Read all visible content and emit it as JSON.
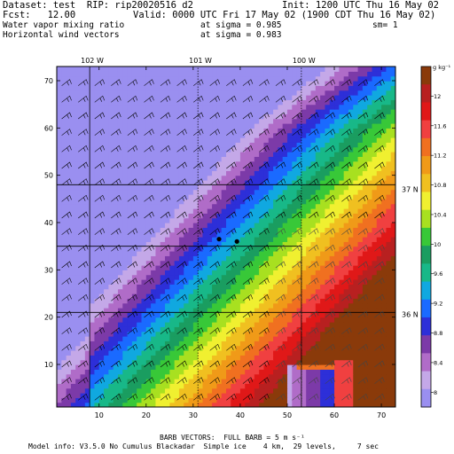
{
  "header": {
    "dataset": "Dataset: test  RIP: rip20020516 d2",
    "init": "Init: 1200 UTC Thu 16 May 02",
    "fcst": "Fcst:   12.00",
    "valid": "Valid: 0000 UTC Fri 17 May 02 (1900 CDT Thu 16 May 02)",
    "field1": "Water vapor mixing ratio",
    "sigma1": "at sigma = 0.985",
    "sm": "sm= 1",
    "field2": "Horizontal wind vectors",
    "sigma2": "at sigma = 0.983"
  },
  "footer": {
    "barbs": "BARB VECTORS:  FULL BARB = 5 m s⁻¹",
    "model": "Model info: V3.5.0 No Cumulus Blackadar  Simple ice    4 km,  29 levels,     7 sec"
  },
  "colors": {
    "scale": [
      "#9a8ff0",
      "#c4a8e8",
      "#b06cc8",
      "#7c3aa8",
      "#2d2fd8",
      "#1a6aff",
      "#10a8e0",
      "#18b888",
      "#1a9d60",
      "#38c838",
      "#a8e020",
      "#f0f030",
      "#f0c020",
      "#f09a18",
      "#f07020",
      "#f04040",
      "#e01818",
      "#b82020",
      "#8a3a0a"
    ]
  },
  "chart_data": {
    "type": "heatmap",
    "title": "Water vapor mixing ratio at sigma = 0.985",
    "x_ticks": [
      10,
      20,
      30,
      40,
      50,
      60,
      70
    ],
    "y_ticks": [
      10,
      20,
      30,
      40,
      50,
      60,
      70
    ],
    "xlim": [
      1,
      73
    ],
    "ylim": [
      1,
      73
    ],
    "longitude_labels": [
      "102 W",
      "101 W",
      "100 W"
    ],
    "latitude_labels": [
      "37 N",
      "36 N"
    ],
    "colorbar": {
      "unit": "g kg⁻¹",
      "labels": [
        "8",
        "8.4",
        "8.8",
        "9.2",
        "9.6",
        "10",
        "10.4",
        "10.8",
        "11.2",
        "11.6",
        "12"
      ],
      "label_values": [
        8,
        8.4,
        8.8,
        9.2,
        9.6,
        10,
        10.4,
        10.8,
        11.2,
        11.6,
        12
      ],
      "range": [
        7.8,
        12.4
      ]
    },
    "field_note": "Moist (orange/red, ~11.6–12 g/kg) east and south-east; dry (purple/blue, ~8–9 g/kg) west; tight gradient band running from lower-left to upper-middle; dry tongue in the south-east near x 50–62, y 2–10.",
    "wind_barbs": "Horizontal wind barbs on a regular grid; full barb = 5 m/s"
  }
}
